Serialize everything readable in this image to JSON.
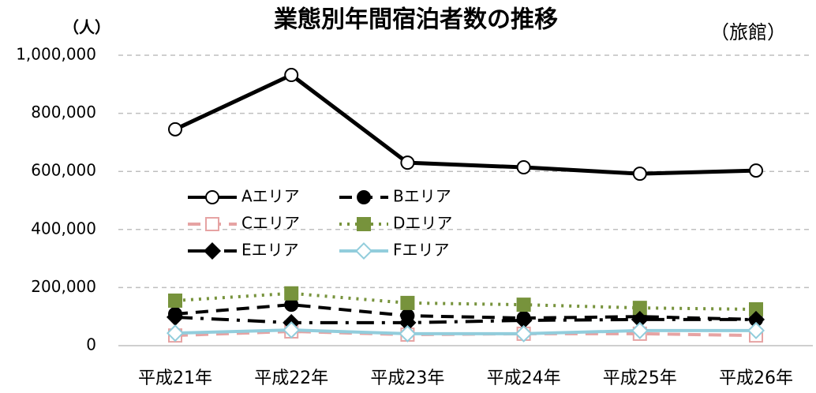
{
  "chart_data": {
    "type": "line",
    "title": "業態別年間宿泊者数の推移",
    "annotations": [
      "（人）",
      "（旅館）"
    ],
    "categories": [
      "平成21年",
      "平成22年",
      "平成23年",
      "平成24年",
      "平成25年",
      "平成26年"
    ],
    "series": [
      {
        "name": "Aエリア",
        "color": "#000000",
        "dash": "solid",
        "marker": "circle",
        "marker_fill": "#ffffff",
        "values": [
          745000,
          932000,
          630000,
          614000,
          592000,
          603000
        ]
      },
      {
        "name": "Bエリア",
        "color": "#000000",
        "dash": "dash",
        "marker": "circle",
        "marker_fill": "#000000",
        "values": [
          109000,
          141000,
          103000,
          95000,
          100000,
          90000
        ]
      },
      {
        "name": "Cエリア",
        "color": "#e6a3a3",
        "dash": "dash",
        "marker": "square",
        "marker_fill": "#ffffff",
        "values": [
          35000,
          49000,
          38000,
          41000,
          41000,
          35000
        ]
      },
      {
        "name": "Dエリア",
        "color": "#77933c",
        "dash": "dot",
        "marker": "square",
        "marker_fill": "#77933c",
        "values": [
          155000,
          180000,
          147000,
          141000,
          130000,
          125000
        ]
      },
      {
        "name": "Eエリア",
        "color": "#000000",
        "dash": "dashdot",
        "marker": "diamond",
        "marker_fill": "#000000",
        "values": [
          98000,
          79000,
          79000,
          87000,
          90000,
          90000
        ]
      },
      {
        "name": "Fエリア",
        "color": "#92cddc",
        "dash": "solid",
        "marker": "diamond",
        "marker_fill": "#ffffff",
        "values": [
          43000,
          54000,
          41000,
          41000,
          52000,
          52000
        ]
      }
    ],
    "ylim": [
      0,
      1000000
    ],
    "yticks": [
      0,
      {
        "value": 200000,
        "label": "200,000"
      },
      {
        "value": 400000,
        "label": "400,000"
      },
      {
        "value": 600000,
        "label": "600,000"
      },
      {
        "value": 800000,
        "label": "800,000"
      },
      {
        "value": 1000000,
        "label": "1,000,000"
      }
    ],
    "grid": true
  }
}
